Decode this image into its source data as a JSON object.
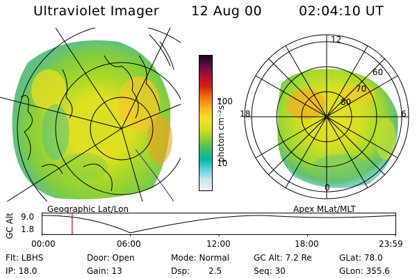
{
  "header": {
    "title": "Ultraviolet Imager",
    "date": "12 Aug 00",
    "time": "02:04:10 UT"
  },
  "panels": {
    "left_label": "Geographic Lat/Lon",
    "right_label": "Apex MLat/MLT",
    "polar_lat_labels": [
      "80",
      "70",
      "60"
    ],
    "polar_mlt_labels": [
      "12",
      "18",
      "6",
      "0"
    ]
  },
  "colorbar": {
    "unit": "photon cm⁻²s⁻¹",
    "ticks": [
      "100",
      "10"
    ],
    "colors": [
      "#f0f0f0",
      "#c8e8f0",
      "#60d0e0",
      "#00b8a0",
      "#40c060",
      "#90d030",
      "#d8e020",
      "#f8e020",
      "#f8b020",
      "#f07010",
      "#d82010",
      "#b01030",
      "#601040",
      "#200020"
    ]
  },
  "altitude_plot": {
    "ylabel": "GC Alt",
    "yticks": [
      "9.0",
      "1.8"
    ],
    "xticks": [
      "00:00",
      "06:00",
      "12:00",
      "18:00",
      "23:59"
    ],
    "marker_time_hours": 2.07
  },
  "footer": {
    "flt": "Flt: LBHS",
    "ip": "IP: 18.0",
    "door": "Door: Open",
    "gain": "Gain: 13",
    "mode": "Mode: Normal",
    "dsp_label": "Dsp:",
    "dsp_value": "2.5",
    "gcalt": "GC Alt: 7.2 Re",
    "seq": "Seq: 30",
    "glat": "GLat: 78.0",
    "glon": "GLon: 355.6"
  }
}
